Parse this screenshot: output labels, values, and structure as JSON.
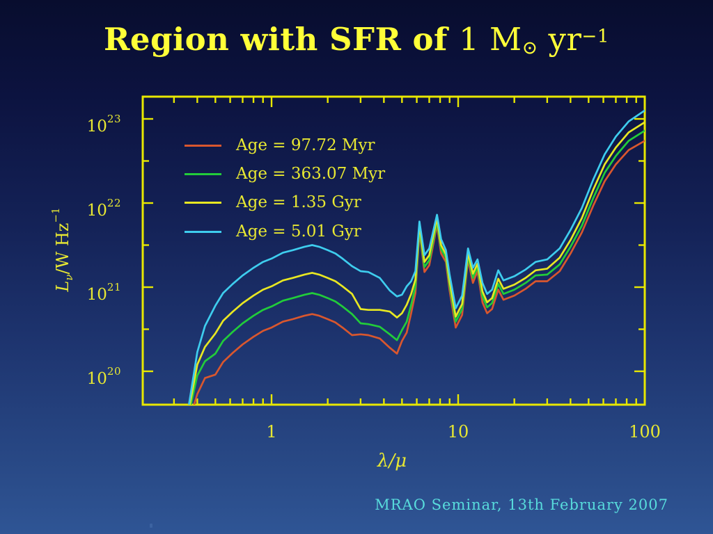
{
  "slide": {
    "title": {
      "main": "Region with SFR of",
      "value": "1",
      "mass": "M",
      "sun": "⊙",
      "unit": "yr",
      "exponent": "−1"
    },
    "footer": "MRAO Seminar, 13th February 2007",
    "colors": {
      "background_top": "#090f33",
      "background_bottom": "#2e5190",
      "title": "#ffff38",
      "axis": "#e8e800",
      "labels": "#e8e832",
      "footer": "#58dcdc"
    }
  },
  "chart_data": {
    "type": "line",
    "xlabel": {
      "lambda": "λ",
      "slash": "/",
      "mu": "μ"
    },
    "ylabel": {
      "symbol": "L",
      "subscript": "ν",
      "units": "/W Hz",
      "exponent": "−1"
    },
    "x_axis": {
      "scale": "log",
      "range_um": [
        0.2,
        100
      ],
      "tick_labels": [
        "1",
        "10",
        "100"
      ],
      "major_ticks": [
        1,
        10,
        100
      ],
      "minor_ticks": [
        0.3,
        0.4,
        0.5,
        0.6,
        0.7,
        0.8,
        0.9,
        2,
        3,
        4,
        5,
        6,
        7,
        8,
        9,
        20,
        30,
        40,
        50,
        60,
        70,
        80,
        90
      ]
    },
    "y_axis": {
      "scale": "log",
      "range_log10": [
        19.6,
        23.26
      ],
      "tick_labels": [
        {
          "base": "10",
          "exp": "23"
        },
        {
          "base": "10",
          "exp": "22"
        },
        {
          "base": "10",
          "exp": "21"
        },
        {
          "base": "10",
          "exp": "20"
        }
      ],
      "major_ticks_log10": [
        20,
        21,
        22,
        23
      ],
      "minor_ticks_log10": [
        20.5,
        21.5,
        22.5
      ]
    },
    "legend_position": "upper-left-inside",
    "x_um": [
      0.36,
      0.4,
      0.44,
      0.5,
      0.55,
      0.62,
      0.7,
      0.8,
      0.9,
      1.0,
      1.15,
      1.3,
      1.5,
      1.65,
      1.8,
      2.0,
      2.2,
      2.4,
      2.7,
      3.0,
      3.3,
      3.8,
      4.3,
      4.7,
      5.0,
      5.3,
      5.6,
      5.9,
      6.2,
      6.6,
      7.0,
      7.7,
      8.1,
      8.6,
      9.0,
      9.7,
      10.5,
      11.3,
      12.0,
      12.7,
      13.5,
      14.3,
      15.2,
      16.4,
      17.5,
      20,
      23,
      26,
      30,
      35,
      40,
      46,
      53,
      61,
      70,
      82,
      100
    ],
    "series": [
      {
        "name": "Age = 97.72 Myr",
        "color": "#d9572e",
        "log10_L": [
          19.39,
          19.73,
          19.92,
          19.96,
          20.11,
          20.22,
          20.32,
          20.41,
          20.48,
          20.52,
          20.59,
          20.62,
          20.66,
          20.68,
          20.66,
          20.62,
          20.58,
          20.52,
          20.43,
          20.44,
          20.43,
          20.39,
          20.28,
          20.21,
          20.36,
          20.46,
          20.69,
          20.93,
          21.66,
          21.18,
          21.26,
          21.74,
          21.4,
          21.3,
          20.96,
          20.52,
          20.67,
          21.33,
          21.05,
          21.19,
          20.82,
          20.69,
          20.74,
          20.97,
          20.85,
          20.9,
          20.98,
          21.07,
          21.07,
          21.19,
          21.4,
          21.65,
          21.97,
          22.26,
          22.46,
          22.63,
          22.74
        ]
      },
      {
        "name": "Age = 363.07 Myr",
        "color": "#22cc3a",
        "log10_L": [
          19.49,
          19.95,
          20.12,
          20.21,
          20.36,
          20.47,
          20.57,
          20.66,
          20.73,
          20.77,
          20.84,
          20.87,
          20.91,
          20.93,
          20.91,
          20.87,
          20.83,
          20.77,
          20.68,
          20.57,
          20.56,
          20.53,
          20.44,
          20.37,
          20.49,
          20.59,
          20.79,
          21.01,
          21.7,
          21.24,
          21.32,
          21.78,
          21.45,
          21.35,
          21.02,
          20.59,
          20.74,
          21.37,
          21.11,
          21.24,
          20.89,
          20.76,
          20.81,
          21.04,
          20.92,
          20.97,
          21.05,
          21.14,
          21.15,
          21.27,
          21.48,
          21.73,
          22.06,
          22.36,
          22.56,
          22.74,
          22.86
        ]
      },
      {
        "name": "Age = 1.35 Gyr",
        "color": "#e8e822",
        "log10_L": [
          19.54,
          20.08,
          20.29,
          20.45,
          20.6,
          20.71,
          20.81,
          20.9,
          20.97,
          21.01,
          21.08,
          21.11,
          21.15,
          21.17,
          21.15,
          21.11,
          21.07,
          21.01,
          20.92,
          20.74,
          20.73,
          20.73,
          20.71,
          20.64,
          20.69,
          20.79,
          20.92,
          21.09,
          21.74,
          21.3,
          21.38,
          21.82,
          21.5,
          21.39,
          21.07,
          20.65,
          20.8,
          21.41,
          21.16,
          21.28,
          20.95,
          20.82,
          20.87,
          21.1,
          20.98,
          21.03,
          21.11,
          21.2,
          21.22,
          21.35,
          21.56,
          21.82,
          22.16,
          22.46,
          22.66,
          22.84,
          22.96
        ]
      },
      {
        "name": "Age = 5.01 Gyr",
        "color": "#3ecdee",
        "log10_L": [
          19.59,
          20.23,
          20.54,
          20.78,
          20.93,
          21.04,
          21.14,
          21.23,
          21.3,
          21.34,
          21.41,
          21.44,
          21.48,
          21.5,
          21.48,
          21.44,
          21.4,
          21.34,
          21.25,
          21.19,
          21.18,
          21.11,
          20.96,
          20.89,
          20.91,
          21.01,
          21.07,
          21.19,
          21.78,
          21.38,
          21.46,
          21.86,
          21.57,
          21.44,
          21.15,
          20.75,
          20.9,
          21.46,
          21.23,
          21.33,
          21.05,
          20.92,
          20.97,
          21.2,
          21.08,
          21.13,
          21.21,
          21.3,
          21.33,
          21.46,
          21.68,
          21.94,
          22.28,
          22.58,
          22.79,
          22.97,
          23.1
        ]
      }
    ]
  }
}
